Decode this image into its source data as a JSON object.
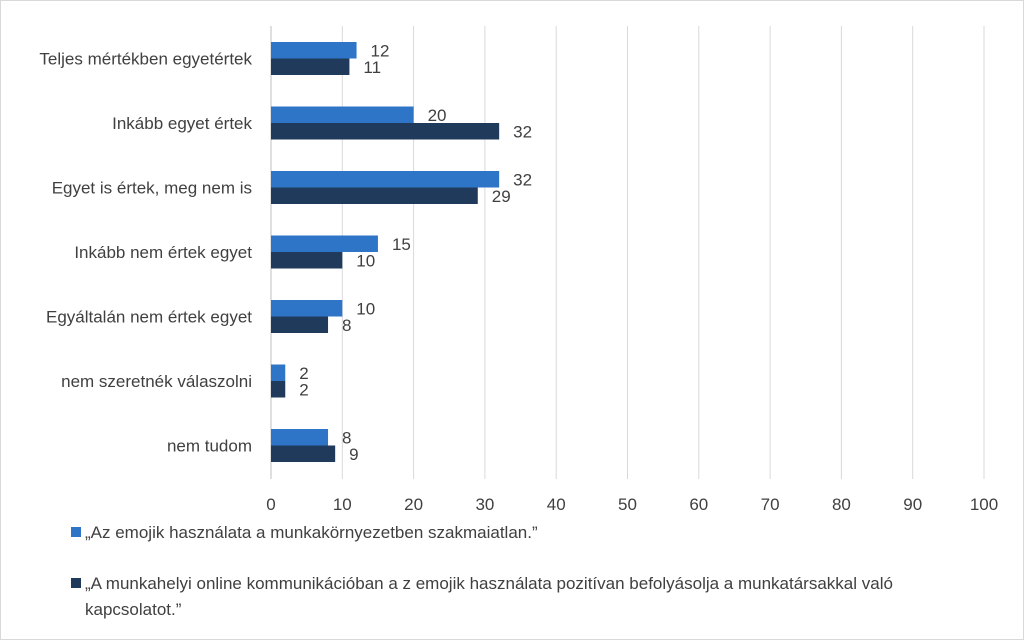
{
  "chart_data": {
    "type": "bar",
    "orientation": "horizontal",
    "categories": [
      "Teljes mértékben egyetértek",
      "Inkább egyet értek",
      "Egyet is értek, meg nem is",
      "Inkább nem értek egyet",
      "Egyáltalán nem értek egyet",
      "nem szeretnék válaszolni",
      "nem tudom"
    ],
    "series": [
      {
        "name": "„Az emojik használata a munkakörnyezetben szakmaiatlan.”",
        "color": "#2e75c8",
        "values": [
          12,
          20,
          32,
          15,
          10,
          2,
          8
        ]
      },
      {
        "name": "„A munkahelyi online kommunikációban a z emojik használata pozitívan befolyásolja a munkatársakkal való kapcsolatot.”",
        "legend_lines": [
          "„A munkahelyi online kommunikációban a z emojik használata pozitívan befolyásolja a munkatársakkal való",
          "kapcsolatot.”"
        ],
        "color": "#203a5c",
        "values": [
          11,
          32,
          29,
          10,
          8,
          2,
          9
        ]
      }
    ],
    "xlim": [
      0,
      100
    ],
    "xticks": [
      0,
      10,
      20,
      30,
      40,
      50,
      60,
      70,
      80,
      90,
      100
    ],
    "grid": true,
    "legend_position": "bottom",
    "title": "",
    "xlabel": "",
    "ylabel": ""
  }
}
